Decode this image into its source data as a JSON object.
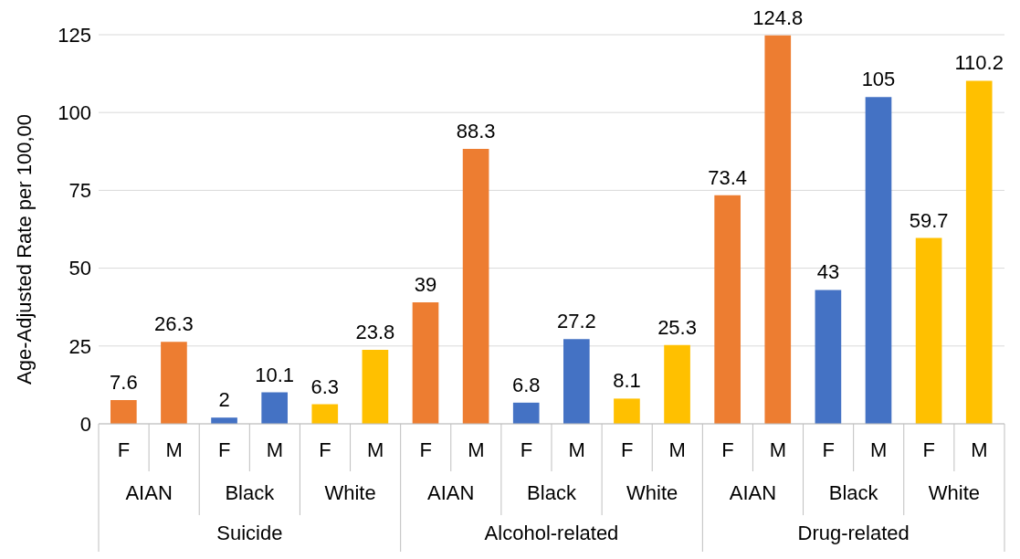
{
  "chart_data": {
    "type": "bar",
    "ylabel": "Age-Adjusted Rate per 100,00",
    "categories": [
      "F",
      "M",
      "F",
      "M",
      "F",
      "M",
      "F",
      "M",
      "F",
      "M",
      "F",
      "M",
      "F",
      "M",
      "F",
      "M",
      "F",
      "M"
    ],
    "values": [
      7.6,
      26.3,
      2,
      10.1,
      6.3,
      23.8,
      39,
      88.3,
      6.8,
      27.2,
      8.1,
      25.3,
      73.4,
      124.8,
      43,
      105,
      59.7,
      110.2
    ],
    "colors": [
      "#ed7d31",
      "#ed7d31",
      "#4472c4",
      "#4472c4",
      "#ffc000",
      "#ffc000",
      "#ed7d31",
      "#ed7d31",
      "#4472c4",
      "#4472c4",
      "#ffc000",
      "#ffc000",
      "#ed7d31",
      "#ed7d31",
      "#4472c4",
      "#4472c4",
      "#ffc000",
      "#ffc000"
    ],
    "data_labels": true,
    "ylim": [
      0,
      125
    ],
    "yticks": [
      0,
      25,
      50,
      75,
      100,
      125
    ],
    "grid": "y",
    "legend": false,
    "annotations": [
      "AIAN",
      "Black",
      "White",
      "AIAN",
      "Black",
      "White",
      "AIAN",
      "Black",
      "White",
      "Suicide",
      "Alcohol-related",
      "Drug-related"
    ]
  }
}
